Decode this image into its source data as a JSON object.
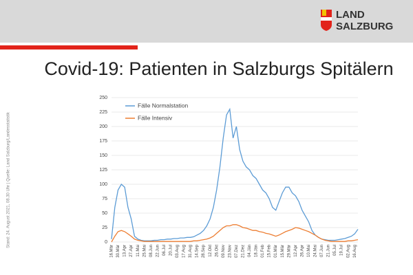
{
  "header": {
    "logo_line1": "LAND",
    "logo_line2": "SALZBURG"
  },
  "side_note": "Stand: 24. August 2021, 08.30 Uhr | Quelle: Land Salzburg/Landesstatistik",
  "chart_data": {
    "type": "line",
    "title": "Covid-19: Patienten in Salzburgs Spitälern",
    "categories": [
      "16.Mär",
      null,
      "30.Mär",
      null,
      "13.Apr",
      null,
      "27.Apr",
      null,
      "11.Mai",
      null,
      "25.Mai",
      null,
      "08.Jun",
      null,
      "22.Jun",
      null,
      "06.Jul",
      null,
      "20.Jul",
      null,
      "03.Aug",
      null,
      "17.Aug",
      null,
      "31.Aug",
      null,
      "14.Sep",
      null,
      "28.Sep",
      null,
      "12.Okt",
      null,
      "26.Okt",
      null,
      "09.Nov",
      null,
      "23.Nov",
      null,
      "07.Dez",
      null,
      "21.Dez",
      null,
      "04.Jän",
      null,
      "18.Jän",
      null,
      "01.Feb",
      null,
      "15.Feb",
      null,
      "01.Mär",
      null,
      "15.Mär",
      null,
      "29.Mär",
      null,
      "12.Apr",
      null,
      "26.Apr",
      null,
      "10.Mai",
      null,
      "24.Mai",
      null,
      "07.Jun",
      null,
      "21.Jun",
      null,
      "05.Jul",
      null,
      "19.Jul",
      null,
      "02.Aug",
      null,
      "16.Aug",
      null
    ],
    "series": [
      {
        "name": "Fälle Normalstation",
        "color": "#5b9bd5",
        "values": [
          5,
          60,
          90,
          100,
          95,
          60,
          40,
          10,
          5,
          3,
          2,
          2,
          2,
          3,
          3,
          4,
          4,
          5,
          5,
          6,
          6,
          7,
          7,
          8,
          8,
          9,
          12,
          15,
          20,
          28,
          40,
          60,
          90,
          130,
          180,
          220,
          230,
          180,
          200,
          160,
          140,
          130,
          125,
          115,
          110,
          100,
          90,
          85,
          75,
          60,
          55,
          70,
          85,
          95,
          95,
          85,
          80,
          70,
          55,
          45,
          35,
          20,
          12,
          8,
          5,
          4,
          3,
          3,
          3,
          4,
          5,
          6,
          8,
          10,
          14,
          22
        ]
      },
      {
        "name": "Fälle Intensiv",
        "color": "#ed7d31",
        "values": [
          0,
          10,
          18,
          20,
          18,
          14,
          10,
          5,
          3,
          2,
          1,
          1,
          1,
          1,
          1,
          1,
          1,
          1,
          1,
          1,
          1,
          1,
          1,
          1,
          1,
          2,
          2,
          3,
          4,
          5,
          7,
          10,
          15,
          20,
          25,
          28,
          28,
          30,
          30,
          28,
          25,
          24,
          22,
          20,
          20,
          18,
          17,
          15,
          14,
          12,
          10,
          12,
          15,
          18,
          20,
          22,
          25,
          24,
          22,
          20,
          18,
          15,
          12,
          8,
          5,
          3,
          2,
          1,
          1,
          1,
          1,
          1,
          2,
          2,
          3,
          4
        ]
      }
    ],
    "ylim": [
      0,
      250
    ],
    "yticks": [
      0,
      25,
      50,
      75,
      100,
      125,
      150,
      175,
      200,
      225,
      250
    ],
    "grid": true,
    "legend": "top-left"
  }
}
